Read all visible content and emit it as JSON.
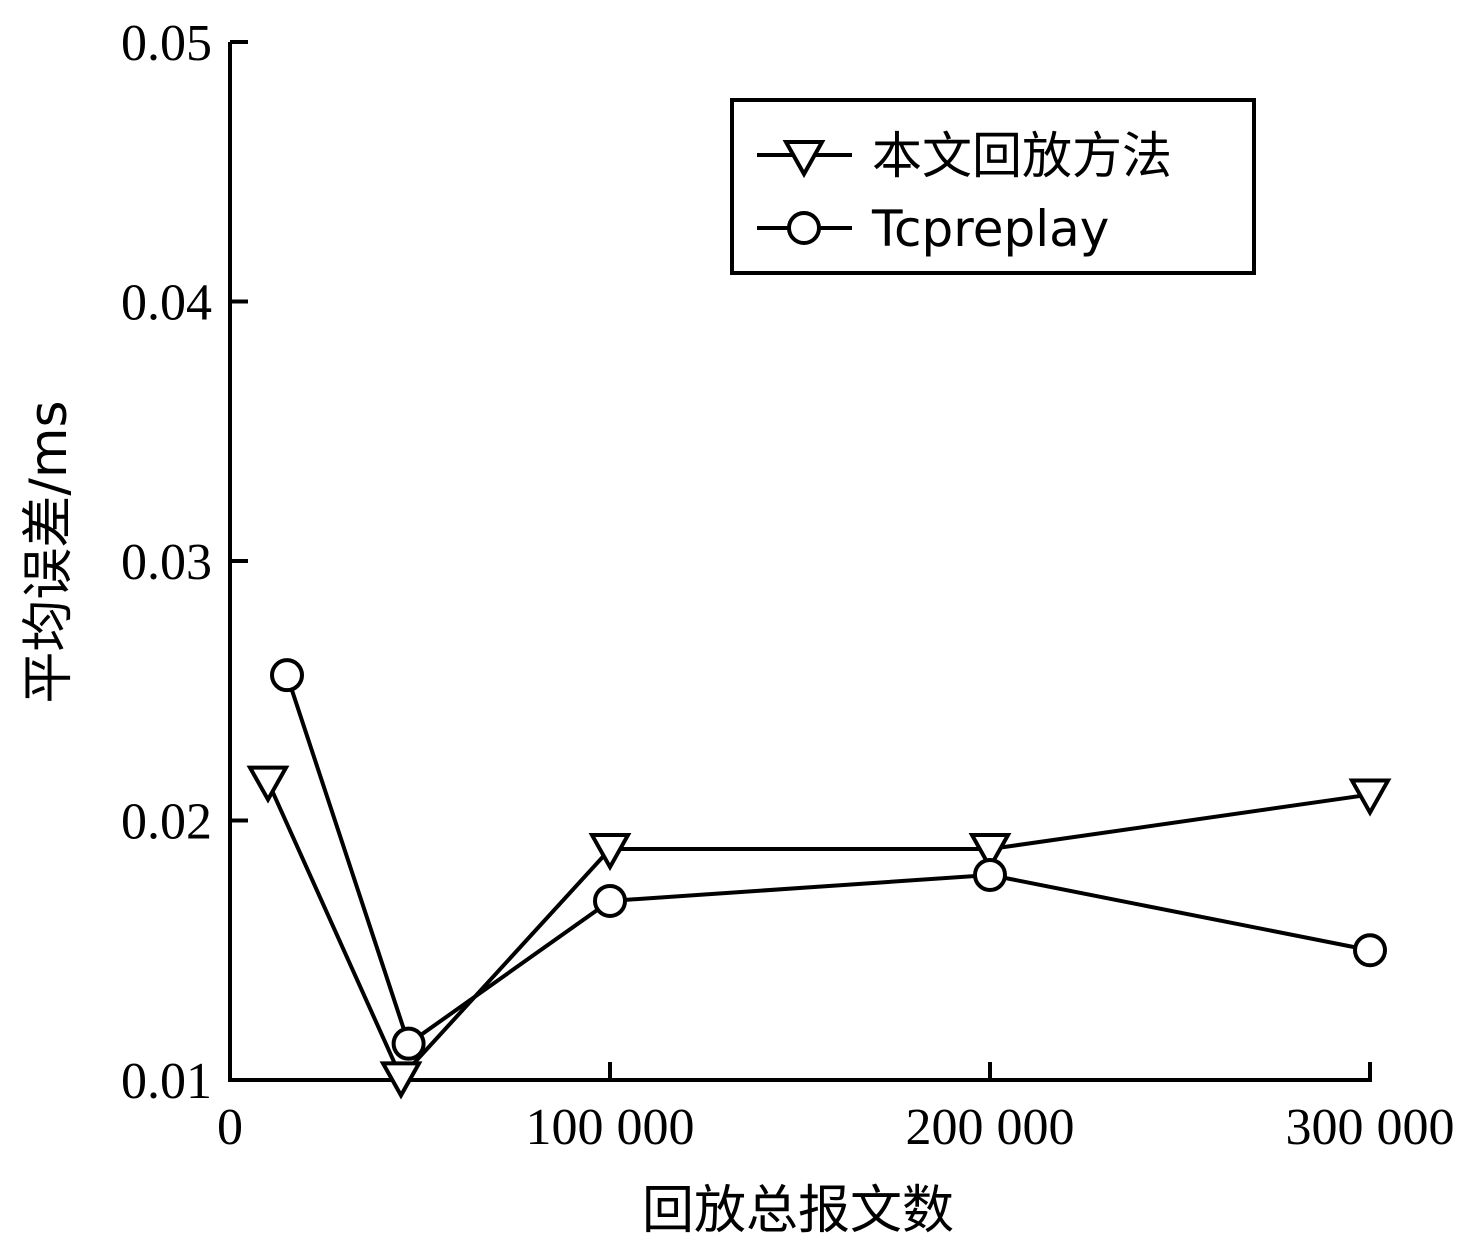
{
  "chart_data": {
    "type": "line",
    "xlabel": "回放总报文数",
    "ylabel": "平均误差/ms",
    "xlim": [
      0,
      300000
    ],
    "ylim": [
      0.01,
      0.05
    ],
    "xticks": [
      {
        "value": 0,
        "label": "0"
      },
      {
        "value": 100000,
        "label": "100 000"
      },
      {
        "value": 200000,
        "label": "200 000"
      },
      {
        "value": 300000,
        "label": "300 000"
      }
    ],
    "yticks": [
      {
        "value": 0.01,
        "label": "0.01"
      },
      {
        "value": 0.02,
        "label": "0.02"
      },
      {
        "value": 0.03,
        "label": "0.03"
      },
      {
        "value": 0.04,
        "label": "0.04"
      },
      {
        "value": 0.05,
        "label": "0.05"
      }
    ],
    "grid": false,
    "legend_position": "top-right",
    "series": [
      {
        "name": "本文回放方法",
        "marker": "triangle-down",
        "color": "#000000",
        "points": [
          {
            "x": 10000,
            "y": 0.0215
          },
          {
            "x": 45000,
            "y": 0.0101
          },
          {
            "x": 100000,
            "y": 0.0189
          },
          {
            "x": 200000,
            "y": 0.0189
          },
          {
            "x": 300000,
            "y": 0.021
          }
        ]
      },
      {
        "name": "Tcpreplay",
        "marker": "circle",
        "color": "#000000",
        "points": [
          {
            "x": 15000,
            "y": 0.0256
          },
          {
            "x": 47000,
            "y": 0.0114
          },
          {
            "x": 100000,
            "y": 0.0169
          },
          {
            "x": 200000,
            "y": 0.0179
          },
          {
            "x": 300000,
            "y": 0.015
          }
        ]
      }
    ]
  }
}
